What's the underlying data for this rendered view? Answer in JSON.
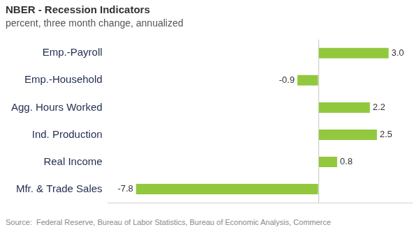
{
  "chart_data": {
    "type": "bar",
    "title": "NBER - Recession Indicators",
    "subtitle": "percent, three month change, annualized",
    "categories": [
      "Emp.-Payroll",
      "Emp.-Household",
      "Agg. Hours Worked",
      "Ind. Production",
      "Real Income",
      "Mfr. & Trade Sales"
    ],
    "values": [
      3,
      -0.9,
      2.2,
      2.5,
      0.8,
      -7.8
    ],
    "value_labels": [
      "3.0",
      "-0.9",
      "2.2",
      "2.5",
      "0.8",
      "-7.8"
    ],
    "color": "#92c83e",
    "orientation": "horizontal",
    "xlim": [
      -9,
      4
    ],
    "xticks": [
      0
    ],
    "grid": true,
    "tick_labels": "y",
    "data_labels": true,
    "source": "Source:  Federal Reserve, Bureau of Labor Statistics, Bureau of Economic Analysis, Commerce"
  }
}
